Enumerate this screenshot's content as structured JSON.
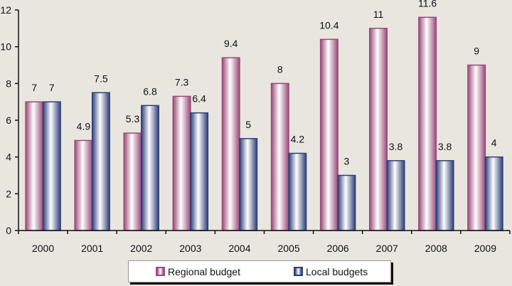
{
  "chart_data": {
    "type": "bar",
    "title": "",
    "xlabel": "",
    "ylabel": "",
    "categories": [
      "2000",
      "2001",
      "2002",
      "2003",
      "2004",
      "2005",
      "2006",
      "2007",
      "2008",
      "2009"
    ],
    "series": [
      {
        "name": "Regional budget",
        "color": "#9a4a78",
        "values": [
          7,
          4.9,
          5.3,
          7.3,
          9.4,
          8,
          10.4,
          11,
          11.6,
          9
        ]
      },
      {
        "name": "Local budgets",
        "color": "#2f3f78",
        "values": [
          7,
          7.5,
          6.8,
          6.4,
          5,
          4.2,
          3,
          3.8,
          3.8,
          4
        ]
      }
    ],
    "ylim": [
      0,
      12
    ],
    "yticks": [
      0,
      2,
      4,
      6,
      8,
      10,
      12
    ],
    "grid": false,
    "legend": "bottom",
    "data_labels": true
  },
  "legend": {
    "items": [
      {
        "label": "Regional budget",
        "color": "#9a4a78"
      },
      {
        "label": "Local budgets",
        "color": "#2f3f78"
      }
    ]
  }
}
